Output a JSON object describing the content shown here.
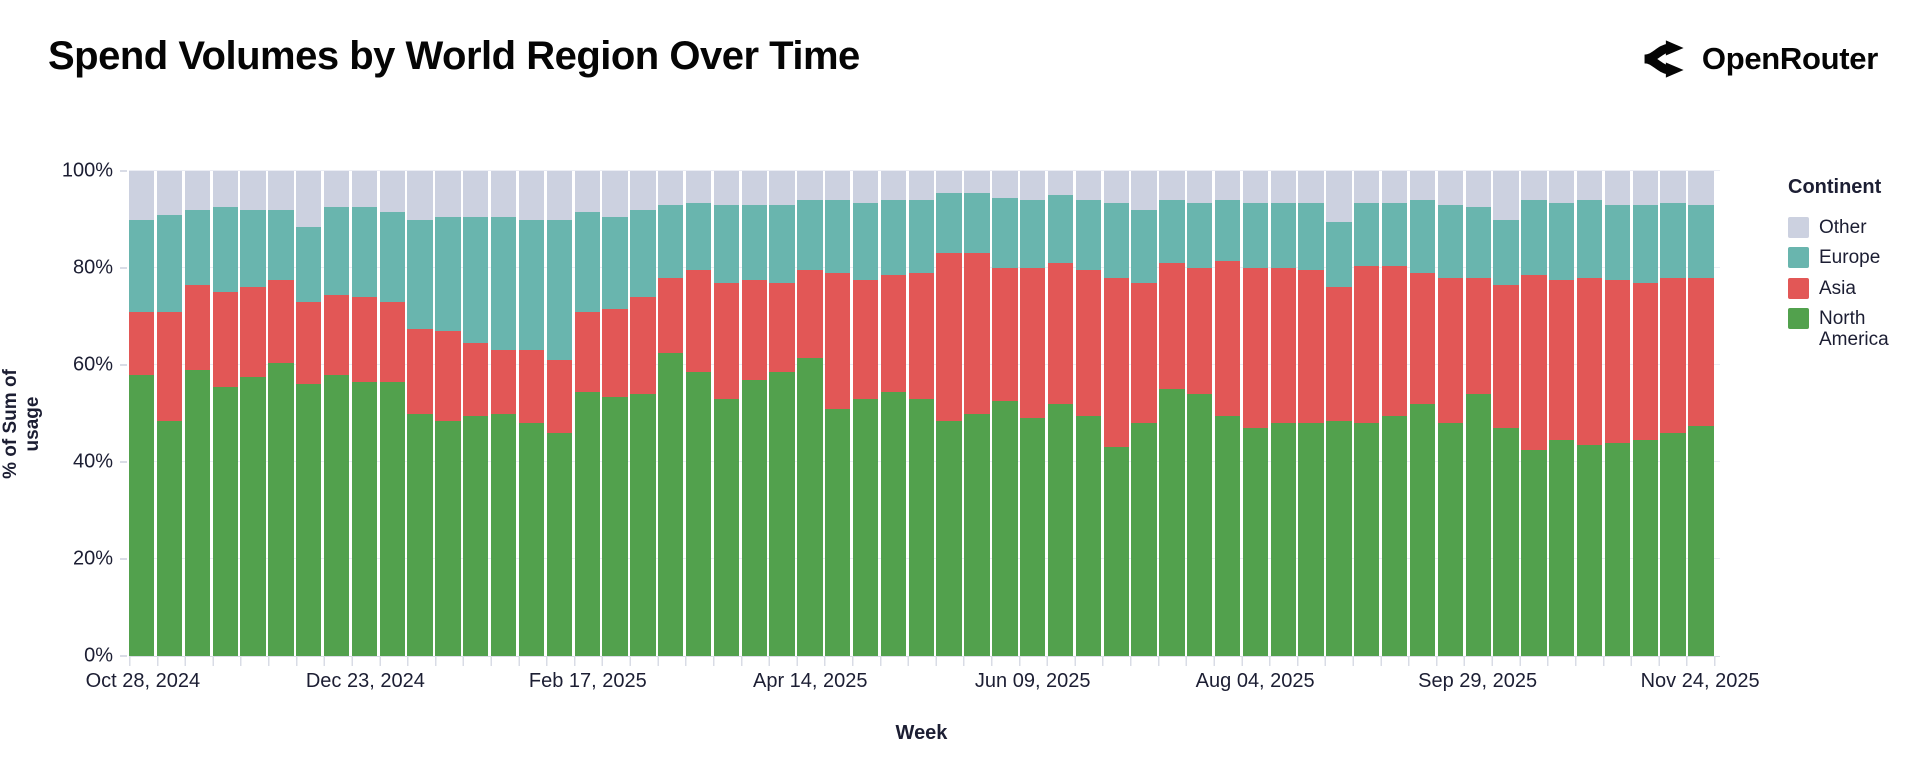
{
  "header": {
    "title": "Spend Volumes by World Region Over Time",
    "brand": {
      "name": "OpenRouter",
      "icon": "route-split-icon"
    }
  },
  "colors": {
    "north_america": "#52a14d",
    "asia": "#e25756",
    "europe": "#69b5ae",
    "other": "#ccd1e0",
    "axis_text": "#1c1e33",
    "gridline": "#ebedf4",
    "tick": "#d9dce6",
    "background": "#ffffff"
  },
  "chart_data": {
    "type": "bar",
    "stacked": true,
    "normalized": "percent of weekly total",
    "title": "Spend Volumes by World Region Over Time",
    "xlabel": "Week",
    "ylabel": "% of Sum of usage",
    "ylim": [
      0,
      100
    ],
    "grid": true,
    "y_ticks": [
      "0%",
      "20%",
      "40%",
      "60%",
      "80%",
      "100%"
    ],
    "x_tick_labels": [
      "Oct 28, 2024",
      "Dec 23, 2024",
      "Feb 17, 2025",
      "Apr 14, 2025",
      "Jun 09, 2025",
      "Aug 04, 2025",
      "Sep 29, 2025",
      "Nov 24, 2025"
    ],
    "x_tick_every": 8,
    "legend": {
      "title": "Continent",
      "position": "right",
      "entries": [
        {
          "label": "Other",
          "color": "#ccd1e0"
        },
        {
          "label": "Europe",
          "color": "#69b5ae"
        },
        {
          "label": "Asia",
          "color": "#e25756"
        },
        {
          "label": "North America",
          "color": "#52a14d"
        }
      ]
    },
    "weeks": [
      "Oct 28, 2024",
      "Nov 04, 2024",
      "Nov 11, 2024",
      "Nov 18, 2024",
      "Nov 25, 2024",
      "Dec 02, 2024",
      "Dec 09, 2024",
      "Dec 16, 2024",
      "Dec 23, 2024",
      "Dec 30, 2024",
      "Jan 06, 2025",
      "Jan 13, 2025",
      "Jan 20, 2025",
      "Jan 27, 2025",
      "Feb 03, 2025",
      "Feb 10, 2025",
      "Feb 17, 2025",
      "Feb 24, 2025",
      "Mar 03, 2025",
      "Mar 10, 2025",
      "Mar 17, 2025",
      "Mar 24, 2025",
      "Mar 31, 2025",
      "Apr 07, 2025",
      "Apr 14, 2025",
      "Apr 21, 2025",
      "Apr 28, 2025",
      "May 05, 2025",
      "May 12, 2025",
      "May 19, 2025",
      "May 26, 2025",
      "Jun 02, 2025",
      "Jun 09, 2025",
      "Jun 16, 2025",
      "Jun 23, 2025",
      "Jun 30, 2025",
      "Jul 07, 2025",
      "Jul 14, 2025",
      "Jul 21, 2025",
      "Jul 28, 2025",
      "Aug 04, 2025",
      "Aug 11, 2025",
      "Aug 18, 2025",
      "Aug 25, 2025",
      "Sep 01, 2025",
      "Sep 08, 2025",
      "Sep 15, 2025",
      "Sep 22, 2025",
      "Sep 29, 2025",
      "Oct 06, 2025",
      "Oct 13, 2025",
      "Oct 20, 2025",
      "Oct 27, 2025",
      "Nov 03, 2025",
      "Nov 10, 2025",
      "Nov 17, 2025",
      "Nov 24, 2025"
    ],
    "series": [
      {
        "name": "North America",
        "color": "#52a14d",
        "values": [
          58,
          48.5,
          59,
          55.5,
          57.5,
          60.5,
          56,
          58,
          56.5,
          56.5,
          50,
          48.5,
          49.5,
          50,
          48,
          46,
          54.5,
          53.5,
          54,
          62.5,
          58.5,
          53,
          57,
          58.5,
          61.5,
          51,
          53,
          54.5,
          53,
          48.5,
          50,
          52.5,
          49,
          52,
          49.5,
          43,
          48,
          55,
          54,
          49.5,
          47,
          48,
          48,
          48.5,
          48,
          49.5,
          52,
          48,
          54,
          47,
          42.5,
          44.5,
          43.5,
          44,
          44.5,
          46,
          47.5
        ]
      },
      {
        "name": "Asia",
        "color": "#e25756",
        "values": [
          13,
          22.5,
          17.5,
          19.5,
          18.5,
          17,
          17,
          16.5,
          17.5,
          16.5,
          17.5,
          18.5,
          15,
          13,
          15,
          15,
          16.5,
          18,
          20,
          15.5,
          21,
          24,
          20.5,
          18.5,
          18,
          28,
          24.5,
          24,
          26,
          34.5,
          33,
          27.5,
          31,
          29,
          30,
          35,
          29,
          26,
          26,
          32,
          33,
          32,
          31.5,
          27.5,
          32.5,
          31,
          27,
          30,
          24,
          29.5,
          36,
          33,
          34.5,
          33.5,
          32.5,
          32,
          30.5
        ]
      },
      {
        "name": "Europe",
        "color": "#69b5ae",
        "values": [
          19,
          20,
          15.5,
          17.5,
          16,
          14.5,
          15.5,
          18,
          18.5,
          18.5,
          22.5,
          23.5,
          26,
          27.5,
          27,
          29,
          20.5,
          19,
          18,
          15,
          14,
          16,
          15.5,
          16,
          14.5,
          15,
          16,
          15.5,
          15,
          12.5,
          12.5,
          14.5,
          14,
          14,
          14.5,
          15.5,
          15,
          13,
          13.5,
          12.5,
          13.5,
          13.5,
          14,
          13.5,
          13,
          13,
          15,
          15,
          14.5,
          13.5,
          15.5,
          16,
          16,
          15.5,
          16,
          15.5,
          15
        ]
      },
      {
        "name": "Other",
        "color": "#ccd1e0",
        "values": [
          10,
          9,
          8,
          7.5,
          8,
          8,
          11.5,
          7.5,
          7.5,
          8.5,
          10,
          9.5,
          9.5,
          9.5,
          10,
          10,
          8.5,
          9.5,
          8,
          7,
          6.5,
          7,
          7,
          7,
          6,
          6,
          6.5,
          6,
          6,
          4.5,
          4.5,
          5.5,
          6,
          5,
          6,
          6.5,
          8,
          6,
          6.5,
          6,
          6.5,
          6.5,
          6.5,
          10.5,
          6.5,
          6.5,
          6,
          7,
          7.5,
          10,
          6,
          6.5,
          6,
          7,
          7,
          6.5,
          7
        ]
      }
    ]
  }
}
